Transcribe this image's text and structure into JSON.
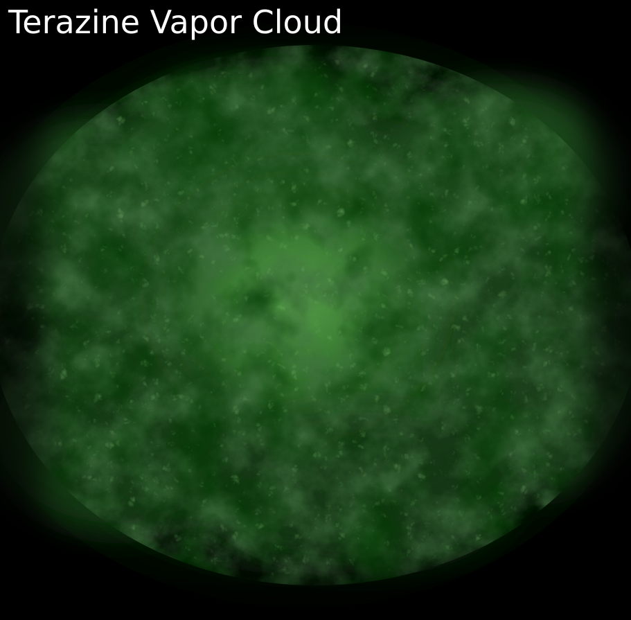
{
  "header": {
    "title": "Terazine Vapor Cloud"
  },
  "artwork": {
    "icon": "vapor-cloud-texture",
    "background_color": "#000000",
    "core_color": "#4f9a43",
    "mid_color": "#2f6f2b",
    "edge_color": "#102d10"
  }
}
